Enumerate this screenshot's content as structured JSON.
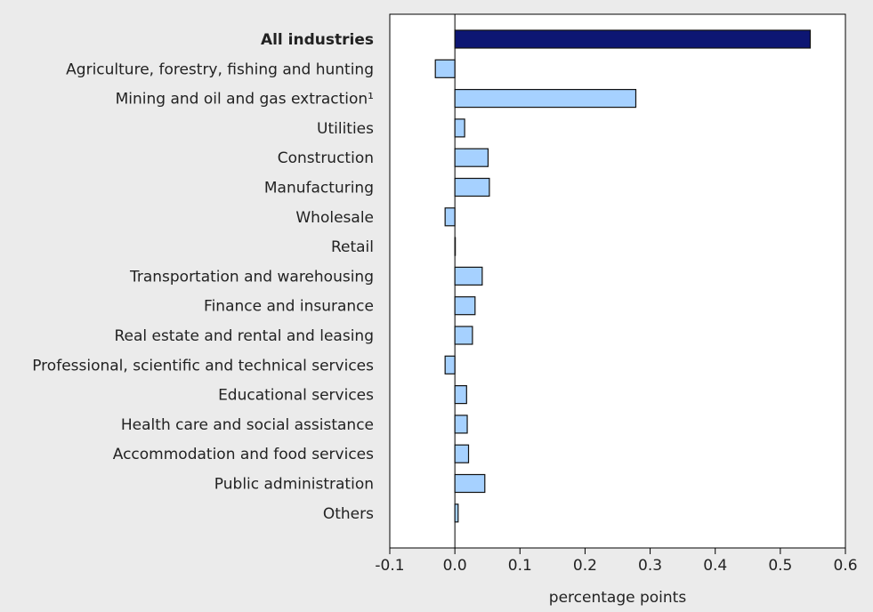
{
  "chart_data": {
    "type": "bar",
    "orientation": "horizontal",
    "xlabel": "percentage points",
    "xlim": [
      -0.1,
      0.6
    ],
    "xticks": [
      "-0.1",
      "0.0",
      "0.1",
      "0.2",
      "0.3",
      "0.4",
      "0.5",
      "0.6"
    ],
    "grid": false,
    "categories": [
      "All industries",
      "Agriculture, forestry, fishing and hunting",
      "Mining and oil and gas extraction¹",
      "Utilities",
      "Construction",
      "Manufacturing",
      "Wholesale",
      "Retail",
      "Transportation and warehousing",
      "Finance and insurance",
      "Real estate and rental and leasing",
      "Professional, scientific and technical services",
      "Educational services",
      "Health care and social assistance",
      "Accommodation and food services",
      "Public administration",
      "Others"
    ],
    "values": [
      0.546,
      -0.03,
      0.278,
      0.015,
      0.051,
      0.053,
      -0.015,
      0.0,
      0.042,
      0.031,
      0.027,
      -0.015,
      0.018,
      0.019,
      0.021,
      0.046,
      0.005
    ],
    "highlight_index": 0,
    "colors": {
      "highlight": "#0d1673",
      "bar": "#a6d1ff",
      "bar_stroke": "#111111",
      "plot_background": "#ffffff",
      "page_background": "#ebebeb"
    }
  }
}
